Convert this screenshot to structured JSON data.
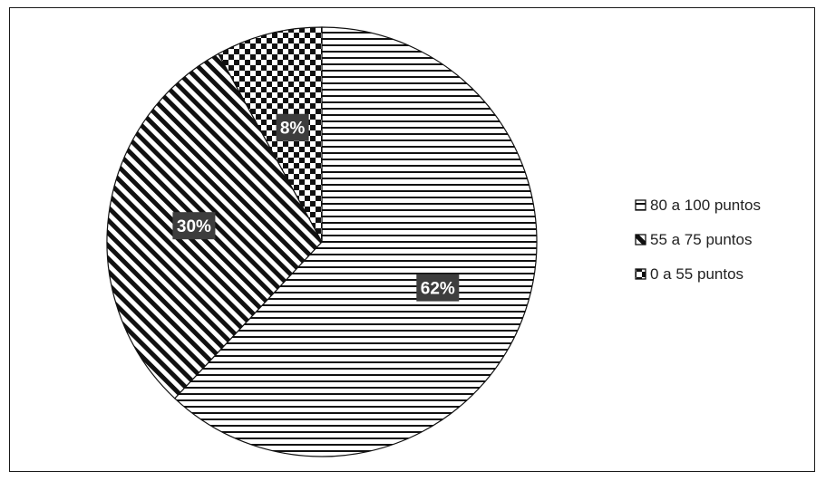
{
  "chart_data": {
    "type": "pie",
    "categories": [
      "80 a 100 puntos",
      "55 a 75 puntos",
      "0 a 55 puntos"
    ],
    "values": [
      62,
      30,
      8
    ],
    "data_labels": [
      "62%",
      "30%",
      "8%"
    ],
    "patterns": [
      "horizontal-stripes",
      "diagonal-stripes",
      "checkerboard"
    ],
    "legend_position": "right",
    "colors": {
      "ink": "#111111",
      "paper": "#ffffff",
      "label_bg": "#3d3d3d",
      "label_text": "#ffffff"
    }
  }
}
